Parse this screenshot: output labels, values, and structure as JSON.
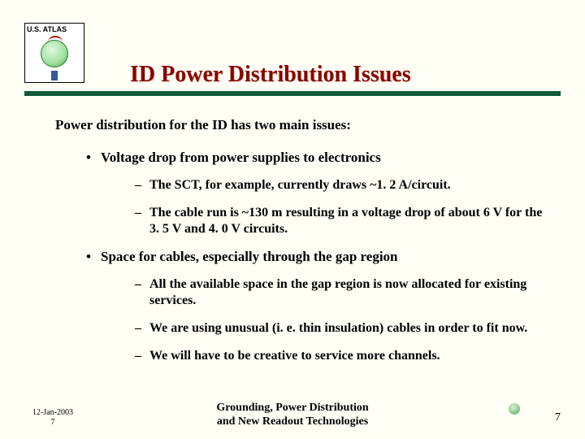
{
  "logo": {
    "label": "U.S. ATLAS"
  },
  "title": "ID Power Distribution Issues",
  "colors": {
    "title_color": "#8a0000",
    "rule_color": "#0e5a36",
    "background": "#fffff5"
  },
  "intro": "Power distribution for the ID has two main issues:",
  "bullets": [
    {
      "text": "Voltage drop from power supplies to electronics",
      "subs": [
        "The SCT, for example, currently draws ~1. 2 A/circuit.",
        "The cable run is ~130 m resulting in a voltage drop of about 6 V for the 3. 5 V and 4. 0 V circuits."
      ]
    },
    {
      "text": "Space for cables, especially through the gap region",
      "subs": [
        "All the available space in the gap region is now allocated for existing services.",
        "We are using unusual (i. e. thin insulation) cables in order to fit now.",
        "We will have to be creative to service more channels."
      ]
    }
  ],
  "footer": {
    "date": "12-Jan-2003",
    "left_num": "7",
    "center_line1": "Grounding, Power Distribution",
    "center_line2": "and New Readout Technologies",
    "page": "7"
  }
}
